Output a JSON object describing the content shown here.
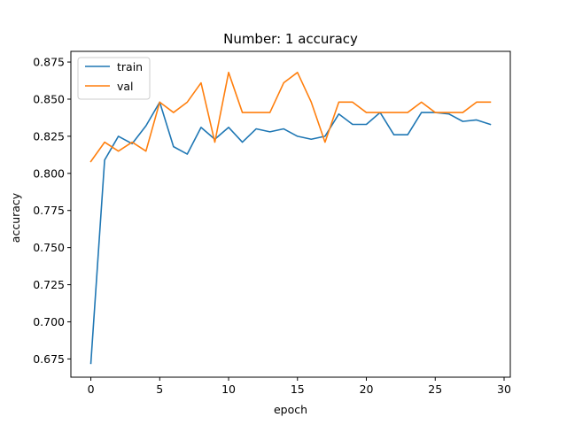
{
  "chart_data": {
    "type": "line",
    "title": "Number: 1 accuracy",
    "xlabel": "epoch",
    "ylabel": "accuracy",
    "xlim": [
      -1.45,
      30.45
    ],
    "ylim": [
      0.6627,
      0.8822
    ],
    "xticks": [
      0,
      5,
      10,
      15,
      20,
      25,
      30
    ],
    "xtick_labels": [
      "0",
      "5",
      "10",
      "15",
      "20",
      "25",
      "30"
    ],
    "yticks": [
      0.675,
      0.7,
      0.725,
      0.75,
      0.775,
      0.8,
      0.825,
      0.85,
      0.875
    ],
    "ytick_labels": [
      "0.675",
      "0.700",
      "0.725",
      "0.750",
      "0.775",
      "0.800",
      "0.825",
      "0.850",
      "0.875"
    ],
    "legend_position": "top-left",
    "grid": false,
    "x": [
      0,
      1,
      2,
      3,
      4,
      5,
      6,
      7,
      8,
      9,
      10,
      11,
      12,
      13,
      14,
      15,
      16,
      17,
      18,
      19,
      20,
      21,
      22,
      23,
      24,
      25,
      26,
      27,
      28,
      29
    ],
    "series": [
      {
        "name": "train",
        "color": "#1f77b4",
        "values": [
          0.672,
          0.809,
          0.825,
          0.82,
          0.832,
          0.848,
          0.818,
          0.813,
          0.831,
          0.823,
          0.831,
          0.821,
          0.83,
          0.828,
          0.83,
          0.825,
          0.823,
          0.825,
          0.84,
          0.833,
          0.833,
          0.841,
          0.826,
          0.826,
          0.841,
          0.841,
          0.84,
          0.835,
          0.836,
          0.833
        ]
      },
      {
        "name": "val",
        "color": "#ff7f0e",
        "values": [
          0.808,
          0.821,
          0.815,
          0.821,
          0.815,
          0.848,
          0.841,
          0.848,
          0.861,
          0.821,
          0.868,
          0.841,
          0.841,
          0.841,
          0.861,
          0.868,
          0.848,
          0.821,
          0.848,
          0.848,
          0.841,
          0.841,
          0.841,
          0.841,
          0.848,
          0.841,
          0.841,
          0.841,
          0.848,
          0.848
        ]
      }
    ]
  }
}
